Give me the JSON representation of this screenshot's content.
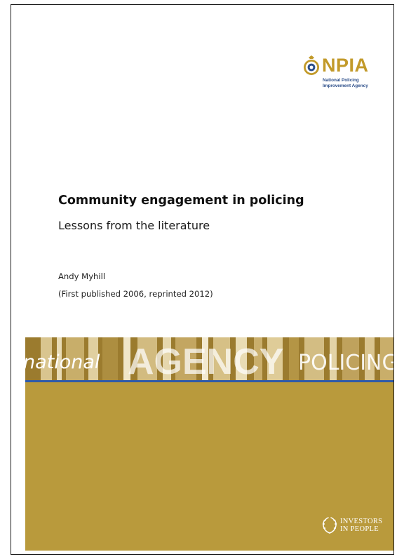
{
  "logo": {
    "acronym": "NPIA",
    "full_name_line1": "National Policing",
    "full_name_line2": "Improvement Agency",
    "icon": "police-crest-icon"
  },
  "document": {
    "title": "Community engagement in policing",
    "subtitle": "Lessons from the literature",
    "author": "Andy Myhill",
    "publication_note": "(First published 2006, reprinted 2012)"
  },
  "banner": {
    "word1": "national",
    "word2": "AGENCY",
    "word3": "POLICING"
  },
  "footer_logo": {
    "line1": "INVESTORS",
    "line2": "IN PEOPLE",
    "icon": "investors-in-people-laurel-icon"
  },
  "colors": {
    "gold": "#b99a3c",
    "band_dark": "#9b7b2e",
    "npia_gold": "#c29a2a",
    "npia_blue": "#2d4f8a",
    "rule_blue": "#2f5aa8"
  }
}
